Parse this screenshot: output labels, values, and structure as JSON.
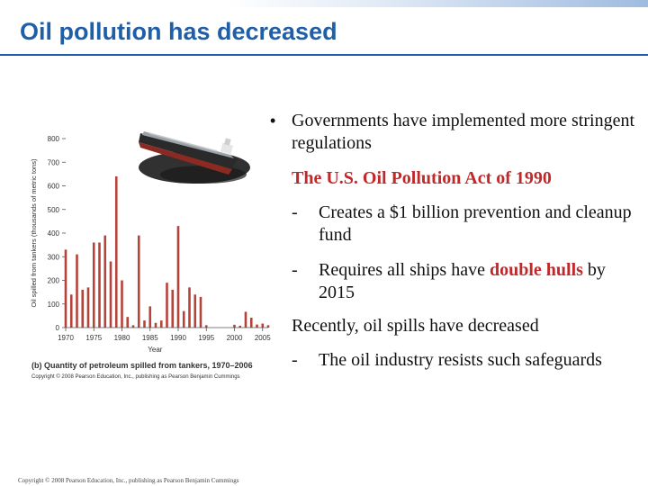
{
  "slide": {
    "title": "Oil pollution has decreased",
    "bullets": {
      "b1": "Governments have implemented more stringent regulations",
      "act": "The U.S. Oil Pollution Act of 1990",
      "sub1": "Creates a $1 billion prevention and cleanup fund",
      "sub2_pre": "Requires all ships have ",
      "sub2_em": "double hulls",
      "sub2_post": " by 2015",
      "recent": "Recently, oil spills have decreased",
      "sub3": "The oil industry resists such safeguards",
      "dash": "-",
      "bullet_glyph": "•"
    },
    "page_copyright": "Copyright © 2008 Pearson Education, Inc., publishing as Pearson Benjamin Cummings"
  },
  "figure": {
    "caption": "(b) Quantity of petroleum spilled from tankers, 1970–2006",
    "copyright": "Copyright © 2008 Pearson Education, Inc., publishing as Pearson Benjamin Cummings",
    "ship_icon": "oil-tanker-icon"
  },
  "chart_data": {
    "type": "bar",
    "xlabel": "Year",
    "ylabel": "Oil spilled from tankers (thousands of metric tons)",
    "ylim": [
      0,
      800
    ],
    "yticks": [
      0,
      100,
      200,
      300,
      400,
      500,
      600,
      700,
      800
    ],
    "xticks": [
      1970,
      1975,
      1980,
      1985,
      1990,
      1995,
      2000,
      2005
    ],
    "bar_color": "#b5433a",
    "categories": [
      1970,
      1971,
      1972,
      1973,
      1974,
      1975,
      1976,
      1977,
      1978,
      1979,
      1980,
      1981,
      1982,
      1983,
      1984,
      1985,
      1986,
      1987,
      1988,
      1989,
      1990,
      1991,
      1992,
      1993,
      1994,
      1995,
      2000,
      2001,
      2002,
      2003,
      2004,
      2005,
      2006
    ],
    "values": [
      330,
      140,
      310,
      160,
      170,
      360,
      360,
      390,
      280,
      640,
      200,
      45,
      10,
      390,
      30,
      90,
      20,
      30,
      190,
      160,
      430,
      70,
      170,
      140,
      130,
      10,
      12,
      8,
      67,
      42,
      13,
      17,
      10
    ]
  }
}
